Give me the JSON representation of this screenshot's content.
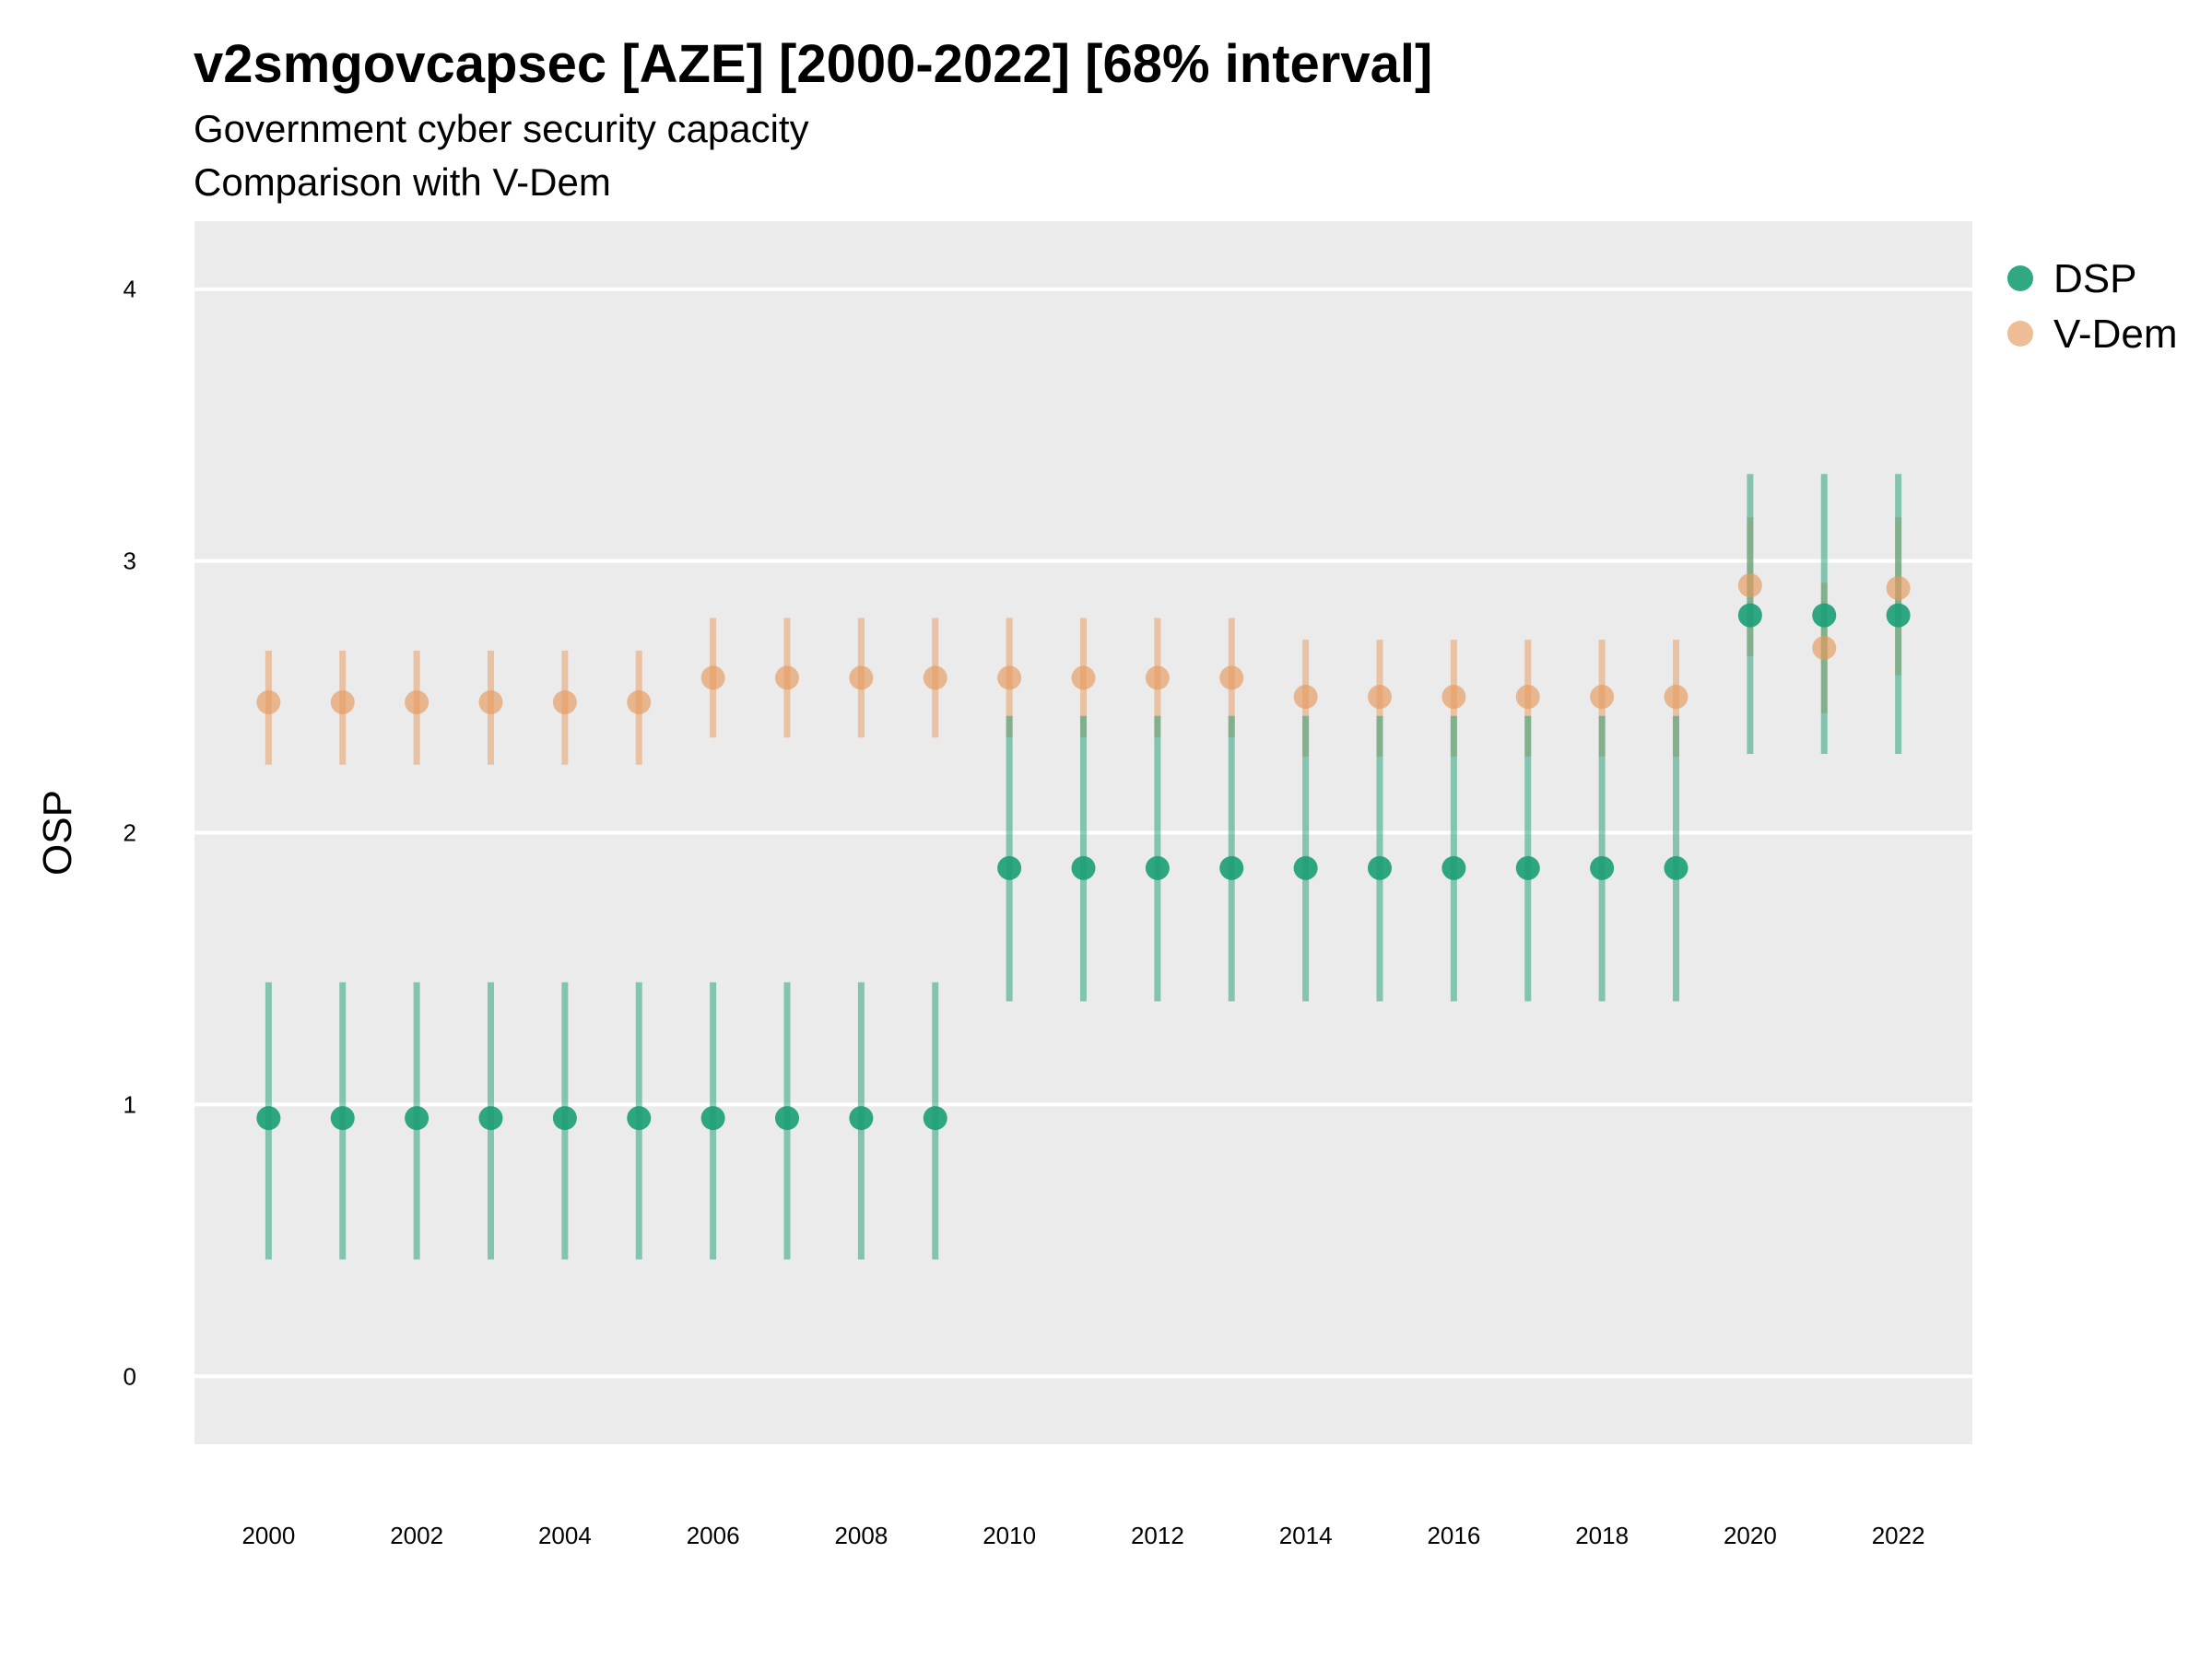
{
  "chart_data": {
    "type": "scatter",
    "title": "v2smgovcapsec [AZE] [2000-2022] [68% interval]",
    "subtitle": "Government cyber security capacity",
    "subtitle2": "Comparison with V-Dem",
    "xlabel": "",
    "ylabel": "OSP",
    "ylim": [
      -0.25,
      4.25
    ],
    "yticks": [
      0,
      1,
      2,
      3,
      4
    ],
    "xlim": [
      1999,
      2023
    ],
    "xticks": [
      2000,
      2002,
      2004,
      2006,
      2008,
      2010,
      2012,
      2014,
      2016,
      2018,
      2020,
      2022
    ],
    "grid": true,
    "legend_position": "top-right",
    "x": [
      2000,
      2001,
      2002,
      2003,
      2004,
      2005,
      2006,
      2007,
      2008,
      2009,
      2010,
      2011,
      2012,
      2013,
      2014,
      2015,
      2016,
      2017,
      2018,
      2019,
      2020,
      2021,
      2022
    ],
    "series": [
      {
        "name": "V-Dem",
        "color": "#e69a5c",
        "values": [
          2.48,
          2.48,
          2.48,
          2.48,
          2.48,
          2.48,
          2.57,
          2.57,
          2.57,
          2.57,
          2.57,
          2.57,
          2.57,
          2.57,
          2.5,
          2.5,
          2.5,
          2.5,
          2.5,
          2.5,
          2.91,
          2.68,
          2.9
        ],
        "lower": [
          2.25,
          2.25,
          2.25,
          2.25,
          2.25,
          2.25,
          2.35,
          2.35,
          2.35,
          2.35,
          2.35,
          2.35,
          2.35,
          2.35,
          2.28,
          2.28,
          2.28,
          2.28,
          2.28,
          2.28,
          2.65,
          2.44,
          2.58
        ],
        "upper": [
          2.67,
          2.67,
          2.67,
          2.67,
          2.67,
          2.67,
          2.79,
          2.79,
          2.79,
          2.79,
          2.79,
          2.79,
          2.79,
          2.79,
          2.71,
          2.71,
          2.71,
          2.71,
          2.71,
          2.71,
          3.16,
          2.92,
          3.16
        ]
      },
      {
        "name": "DSP",
        "color": "#1b9e77",
        "values": [
          0.95,
          0.95,
          0.95,
          0.95,
          0.95,
          0.95,
          0.95,
          0.95,
          0.95,
          0.95,
          1.87,
          1.87,
          1.87,
          1.87,
          1.87,
          1.87,
          1.87,
          1.87,
          1.87,
          1.87,
          2.8,
          2.8,
          2.8
        ],
        "lower": [
          0.43,
          0.43,
          0.43,
          0.43,
          0.43,
          0.43,
          0.43,
          0.43,
          0.43,
          0.43,
          1.38,
          1.38,
          1.38,
          1.38,
          1.38,
          1.38,
          1.38,
          1.38,
          1.38,
          1.38,
          2.29,
          2.29,
          2.29
        ],
        "upper": [
          1.45,
          1.45,
          1.45,
          1.45,
          1.45,
          1.45,
          1.45,
          1.45,
          1.45,
          1.45,
          2.43,
          2.43,
          2.43,
          2.43,
          2.43,
          2.43,
          2.43,
          2.43,
          2.43,
          2.43,
          3.32,
          3.32,
          3.32
        ]
      }
    ],
    "legend": [
      {
        "name": "DSP",
        "color": "#1b9e77"
      },
      {
        "name": "V-Dem",
        "color": "#e69a5c"
      }
    ],
    "panel_background": "#ebebeb"
  }
}
